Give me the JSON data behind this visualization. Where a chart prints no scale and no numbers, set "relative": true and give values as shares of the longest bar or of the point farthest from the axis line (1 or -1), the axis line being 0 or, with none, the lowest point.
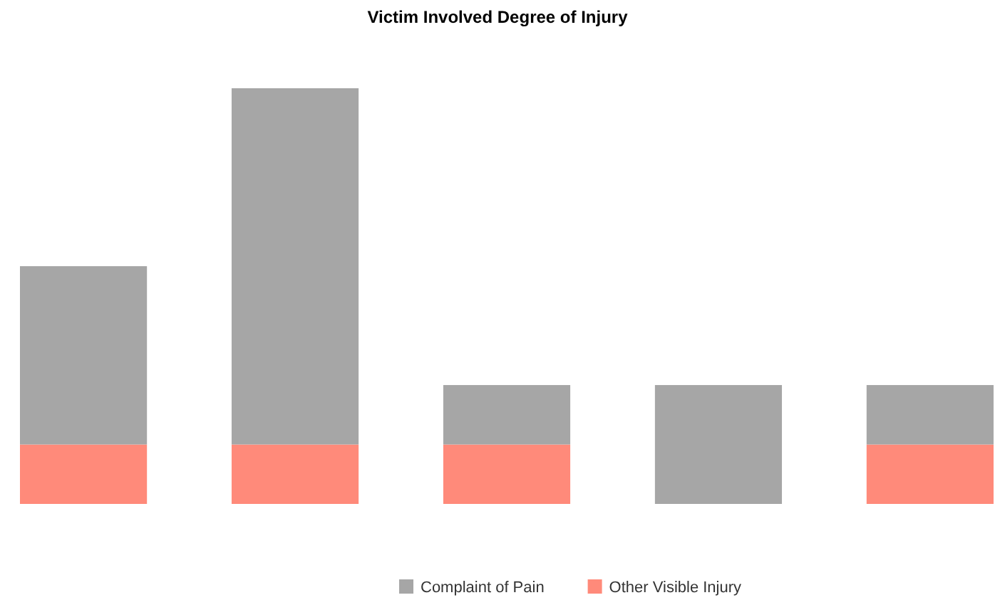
{
  "chart_data": {
    "type": "bar",
    "title": "Victim Involved Degree of Injury",
    "categories": [
      null,
      null,
      null,
      null,
      null
    ],
    "relative": true,
    "stacked": true,
    "legend": "bottom",
    "series": [
      {
        "name": "Other Visible Injury",
        "color": "#ff8a7a",
        "values": [
          0.143,
          0.143,
          0.143,
          null,
          0.143
        ]
      },
      {
        "name": "Complaint of Pain",
        "color": "#a6a6a6",
        "values": [
          0.429,
          0.857,
          0.143,
          0.286,
          0.143
        ]
      }
    ]
  }
}
